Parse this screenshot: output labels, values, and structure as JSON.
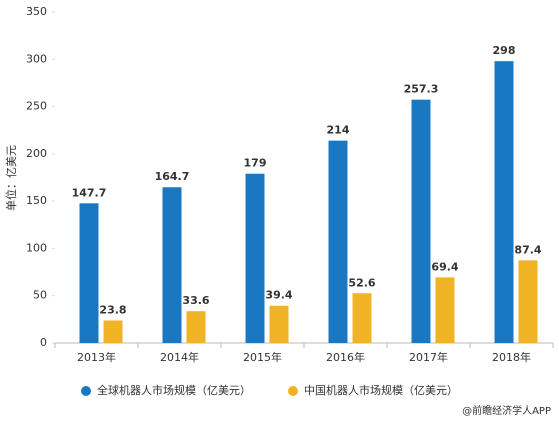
{
  "chart_data": {
    "type": "bar",
    "y_label": "单位：亿美元",
    "categories": [
      "2013年",
      "2014年",
      "2015年",
      "2016年",
      "2017年",
      "2018年"
    ],
    "series": [
      {
        "name": "全球机器人市场规模（亿美元）",
        "color": "#1a78c2",
        "values": [
          147.7,
          164.7,
          179,
          214,
          257.3,
          298
        ]
      },
      {
        "name": "中国机器人市场规模（亿美元）",
        "color": "#f0b323",
        "values": [
          23.8,
          33.6,
          39.4,
          52.6,
          69.4,
          87.4
        ]
      }
    ],
    "ylim": [
      0,
      350
    ],
    "yticks": [
      0,
      50,
      100,
      150,
      200,
      250,
      300,
      350
    ],
    "grid": false,
    "legend": "bottom",
    "source": "@前瞻经济学人APP"
  }
}
